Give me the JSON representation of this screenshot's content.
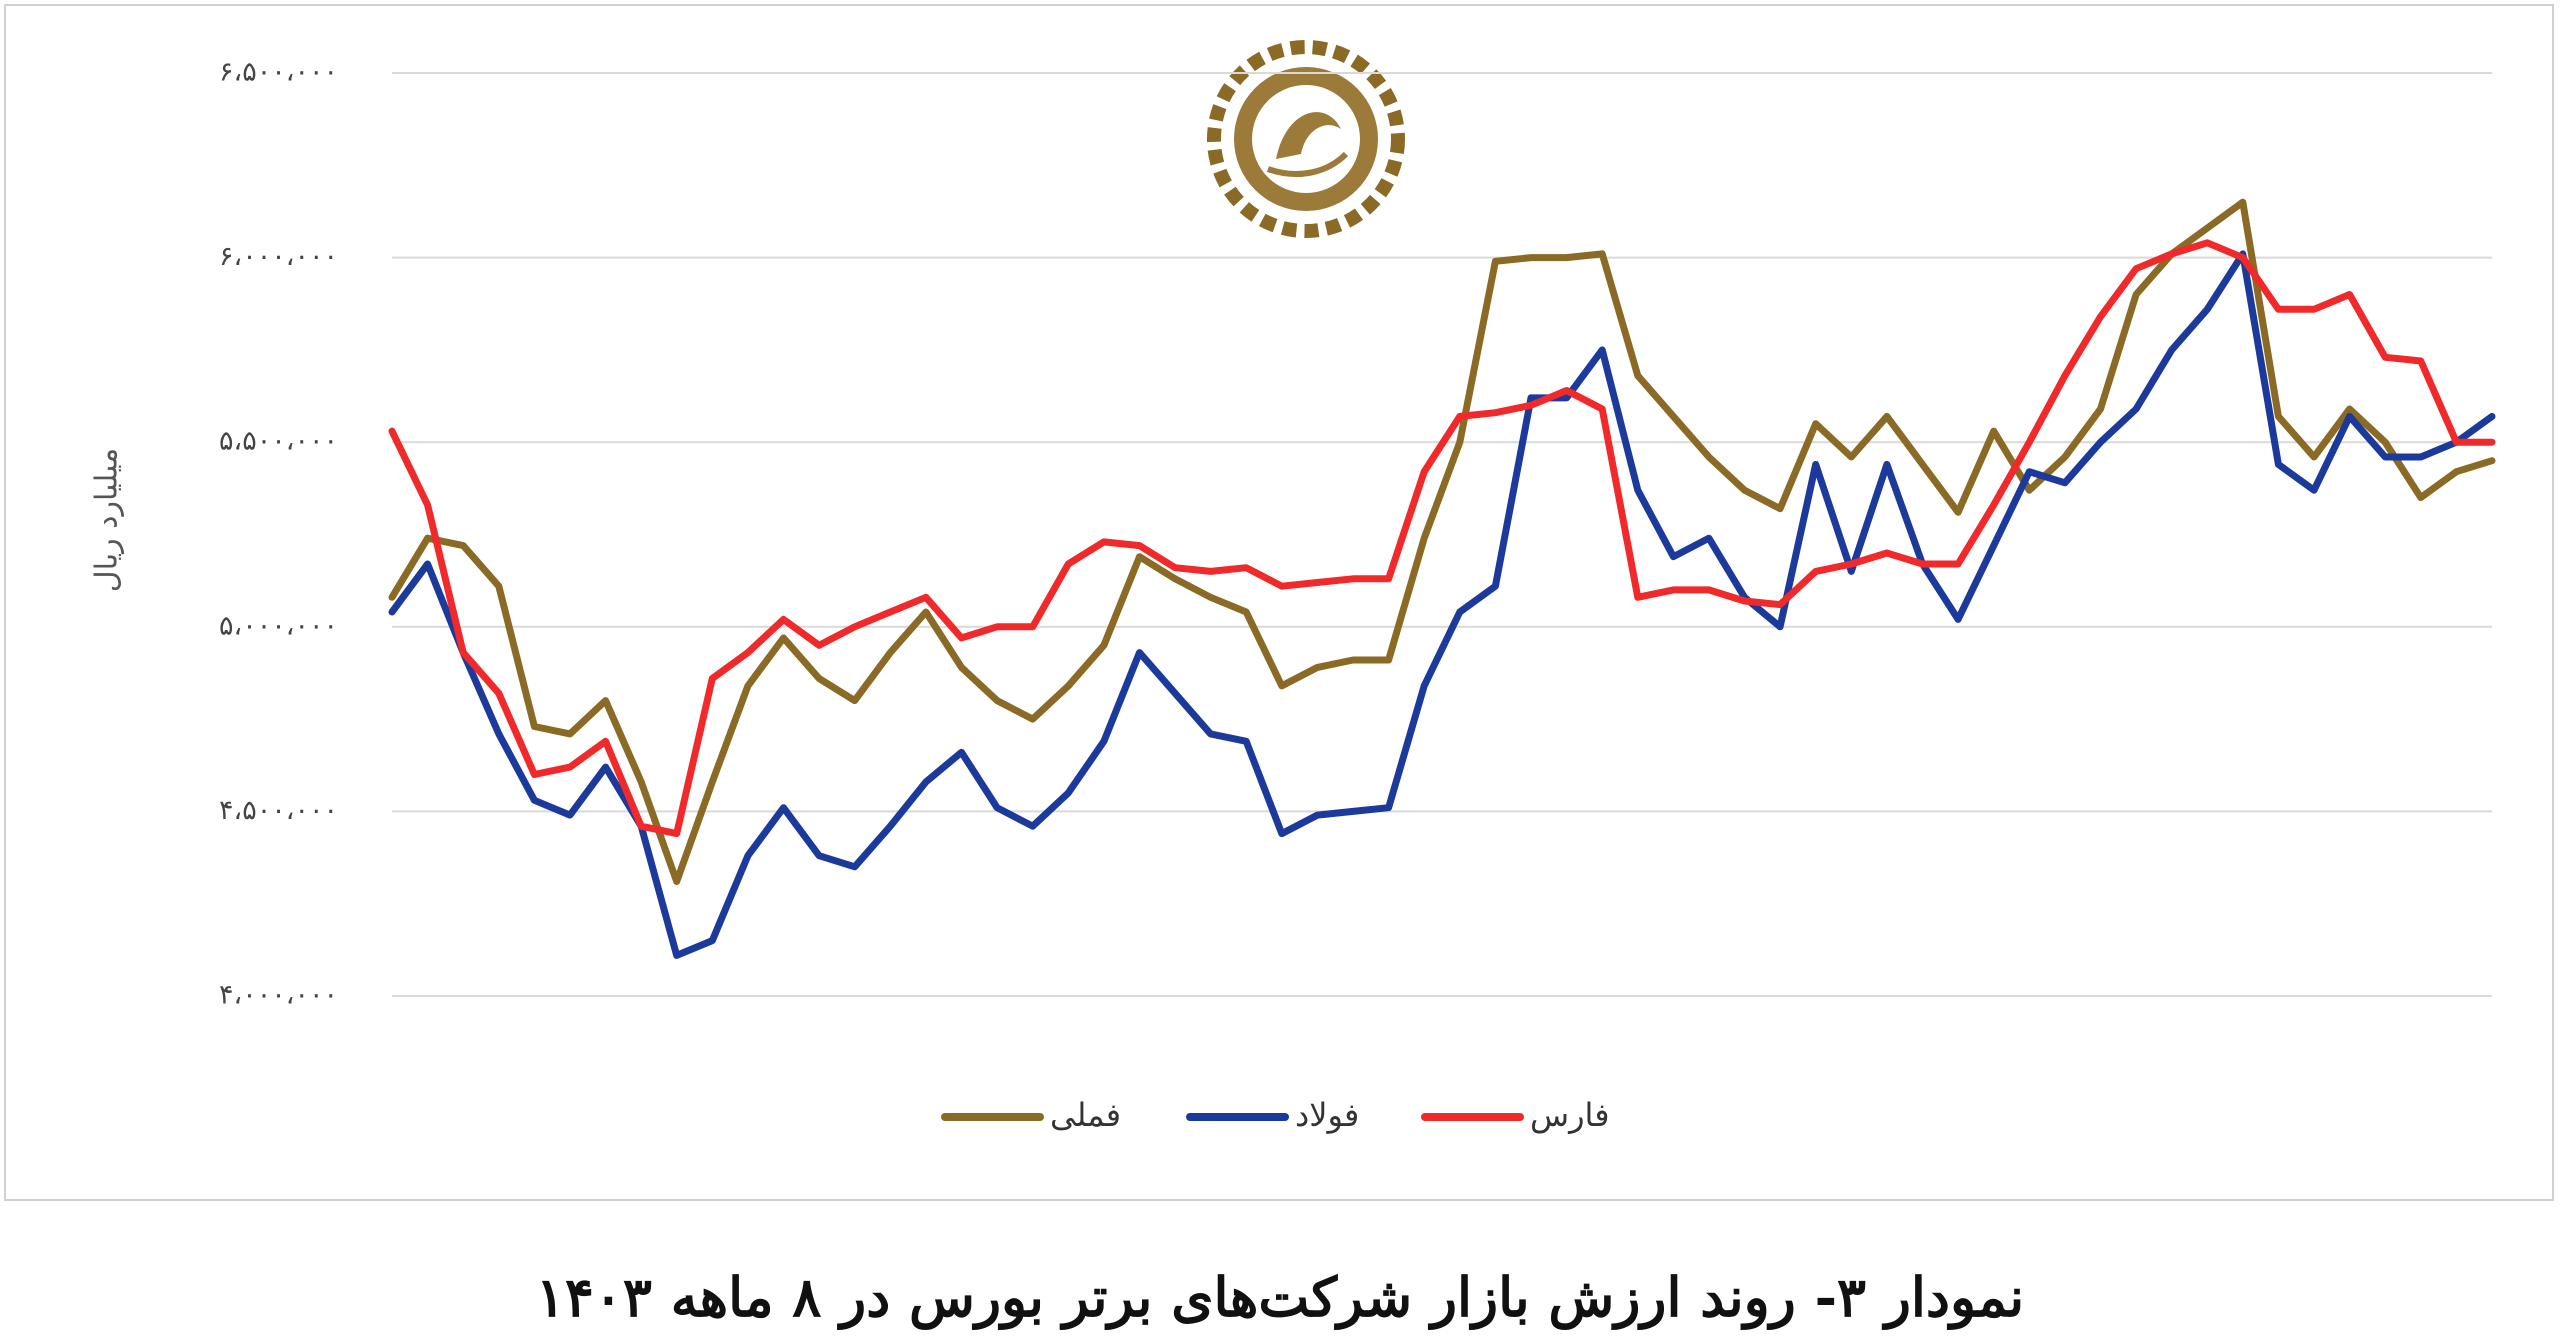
{
  "chart_data": {
    "type": "line",
    "title": "نمودار ۳- روند ارزش بازار شرکت‌های برتر بورس در ۸ ماهه ۱۴۰۳",
    "y_label": "میلیارد ریال",
    "categories": [
      null,
      null,
      null,
      null,
      null,
      null,
      null,
      null,
      null,
      null,
      null,
      null,
      null,
      null,
      null,
      null,
      null,
      null,
      null,
      null,
      null,
      null,
      null,
      null,
      null,
      null,
      null,
      null,
      null,
      null,
      null,
      null,
      null,
      null,
      null,
      null,
      null,
      null,
      null,
      null,
      null,
      null,
      null,
      null,
      null,
      null,
      null,
      null,
      null,
      null,
      null,
      null,
      null,
      null,
      null,
      null,
      null,
      null,
      null,
      null
    ],
    "ylim": [
      4000000,
      6500000
    ],
    "yticks": [
      {
        "value": 4000000,
        "label": "۴،۰۰۰،۰۰۰"
      },
      {
        "value": 4500000,
        "label": "۴،۵۰۰،۰۰۰"
      },
      {
        "value": 5000000,
        "label": "۵،۰۰۰،۰۰۰"
      },
      {
        "value": 5500000,
        "label": "۵،۵۰۰،۰۰۰"
      },
      {
        "value": 6000000,
        "label": "۶،۰۰۰،۰۰۰"
      },
      {
        "value": 6500000,
        "label": "۶،۵۰۰،۰۰۰"
      }
    ],
    "grid": true,
    "legend": "bottom",
    "series": [
      {
        "name": "فملی",
        "color": "#8a6a25",
        "values": [
          5080000,
          5240000,
          5220000,
          5110000,
          4730000,
          4710000,
          4800000,
          4580000,
          4310000,
          4580000,
          4840000,
          4970000,
          4860000,
          4800000,
          4930000,
          5040000,
          4890000,
          4800000,
          4750000,
          4840000,
          4950000,
          5190000,
          5130000,
          5080000,
          5040000,
          4840000,
          4890000,
          4910000,
          4910000,
          5240000,
          5500000,
          5990000,
          6000000,
          6000000,
          6010000,
          5680000,
          5570000,
          5460000,
          5370000,
          5320000,
          5550000,
          5460000,
          5570000,
          5440000,
          5310000,
          5530000,
          5370000,
          5460000,
          5590000,
          5900000,
          6010000,
          6080000,
          6150000,
          5570000,
          5460000,
          5590000,
          5500000,
          5350000,
          5420000,
          5450000
        ]
      },
      {
        "name": "فولاد",
        "color": "#1c3a9c",
        "values": [
          5040000,
          5170000,
          4930000,
          4710000,
          4530000,
          4490000,
          4620000,
          4460000,
          4110000,
          4150000,
          4380000,
          4510000,
          4380000,
          4350000,
          4460000,
          4580000,
          4660000,
          4510000,
          4460000,
          4550000,
          4690000,
          4930000,
          4820000,
          4710000,
          4690000,
          4440000,
          4490000,
          4500000,
          4510000,
          4840000,
          5040000,
          5110000,
          5620000,
          5620000,
          5750000,
          5370000,
          5190000,
          5240000,
          5080000,
          5000000,
          5440000,
          5150000,
          5440000,
          5170000,
          5020000,
          5220000,
          5420000,
          5390000,
          5500000,
          5590000,
          5750000,
          5860000,
          6010000,
          5440000,
          5370000,
          5570000,
          5460000,
          5460000,
          5500000,
          5570000
        ]
      },
      {
        "name": "فارس",
        "color": "#f0292b",
        "values": [
          5530000,
          5330000,
          4930000,
          4820000,
          4600000,
          4620000,
          4690000,
          4460000,
          4440000,
          4860000,
          4930000,
          5020000,
          4950000,
          5000000,
          5040000,
          5080000,
          4970000,
          5000000,
          5000000,
          5170000,
          5230000,
          5220000,
          5160000,
          5150000,
          5160000,
          5110000,
          5120000,
          5130000,
          5130000,
          5420000,
          5570000,
          5580000,
          5600000,
          5640000,
          5590000,
          5080000,
          5100000,
          5100000,
          5070000,
          5060000,
          5150000,
          5170000,
          5200000,
          5170000,
          5170000,
          5330000,
          5500000,
          5680000,
          5840000,
          5970000,
          6010000,
          6040000,
          6000000,
          5860000,
          5860000,
          5900000,
          5730000,
          5720000,
          5500000,
          5500000
        ]
      }
    ]
  }
}
